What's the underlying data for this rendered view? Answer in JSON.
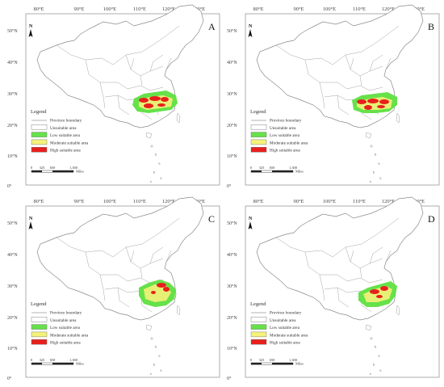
{
  "longitude_labels": [
    "80°E",
    "90°E",
    "100°E",
    "110°E",
    "120°E",
    "130°E"
  ],
  "latitude_labels": [
    "50°N",
    "40°N",
    "30°N",
    "20°N",
    "10°N",
    "0°"
  ],
  "north_arrow_label": "N",
  "legend": {
    "title": "Legend",
    "items": [
      {
        "label": "Province boundary",
        "kind": "line",
        "color": "#9a9a9a"
      },
      {
        "label": "Unsuitable area",
        "kind": "box",
        "color": "#ffffff"
      },
      {
        "label": "Low suitable area",
        "kind": "box",
        "color": "#66e14a"
      },
      {
        "label": "Moderate suitable area",
        "kind": "box",
        "color": "#f5f27a"
      },
      {
        "label": "High suitable area",
        "kind": "box",
        "color": "#e8201c"
      }
    ]
  },
  "scale_bar": {
    "ticks": [
      "0",
      "325",
      "650",
      "1,300"
    ],
    "unit": "Miles"
  },
  "panels": [
    {
      "label": "A"
    },
    {
      "label": "B"
    },
    {
      "label": "C"
    },
    {
      "label": "D"
    }
  ],
  "colors": {
    "low": "#66e14a",
    "moderate": "#f5f27a",
    "high": "#e8201c",
    "outline": "#8a8a8a"
  }
}
